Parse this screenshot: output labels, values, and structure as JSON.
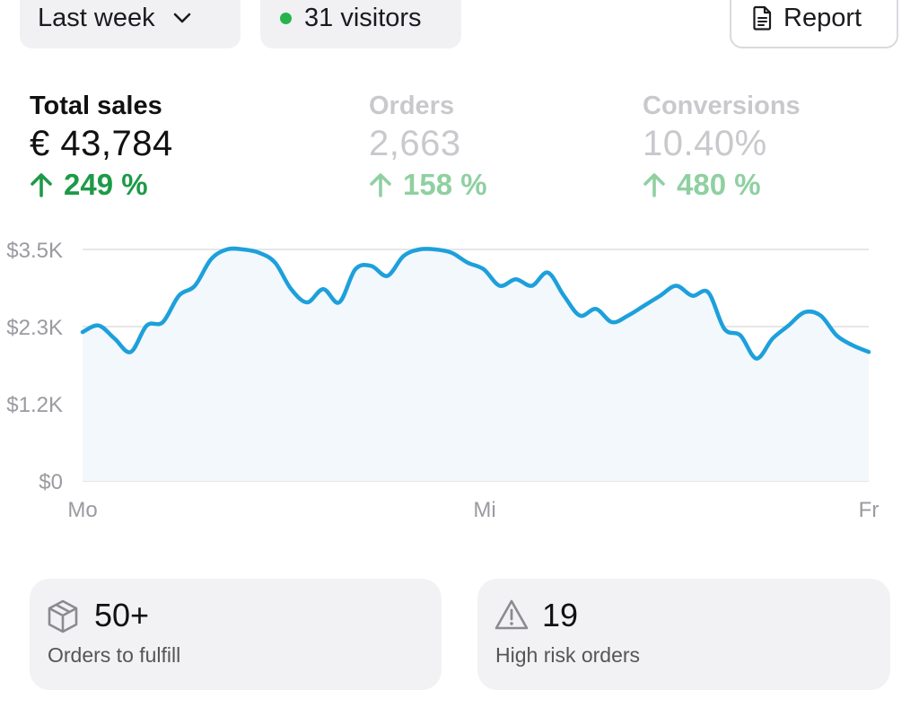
{
  "header": {
    "range_label": "Last week",
    "visitors_label": "31 visitors",
    "report_label": "Report"
  },
  "metrics": [
    {
      "label": "Total sales",
      "value": "€ 43,784",
      "delta": "249 %"
    },
    {
      "label": "Orders",
      "value": "2,663",
      "delta": "158 %"
    },
    {
      "label": "Conversions",
      "value": "10.40%",
      "delta": "480 %"
    }
  ],
  "colors": {
    "line": "#1da0db",
    "area": "#f3f8fc",
    "grid": "#e6e6e9",
    "positive": "#1d9a47",
    "visitor_dot": "#27b34b"
  },
  "chart_data": {
    "type": "area",
    "y_ticks": [
      "$0",
      "$1.2K",
      "$2.3K",
      "$3.5K"
    ],
    "x_ticks": [
      "Mo",
      "Mi",
      "Fr"
    ],
    "ylim": [
      0,
      3500
    ],
    "grid": true,
    "values": [
      2250,
      2350,
      2150,
      1950,
      2350,
      2400,
      2800,
      2950,
      3350,
      3500,
      3500,
      3450,
      3300,
      2900,
      2700,
      2900,
      2700,
      3200,
      3250,
      3100,
      3400,
      3500,
      3500,
      3450,
      3300,
      3200,
      2950,
      3050,
      2950,
      3150,
      2800,
      2500,
      2600,
      2400,
      2500,
      2650,
      2800,
      2950,
      2800,
      2850,
      2300,
      2200,
      1850,
      2150,
      2350,
      2550,
      2500,
      2200,
      2050,
      1950
    ]
  },
  "cards": [
    {
      "number": "50+",
      "label": "Orders to fulfill",
      "icon": "package-icon"
    },
    {
      "number": "19",
      "label": "High risk orders",
      "icon": "warning-icon"
    }
  ]
}
